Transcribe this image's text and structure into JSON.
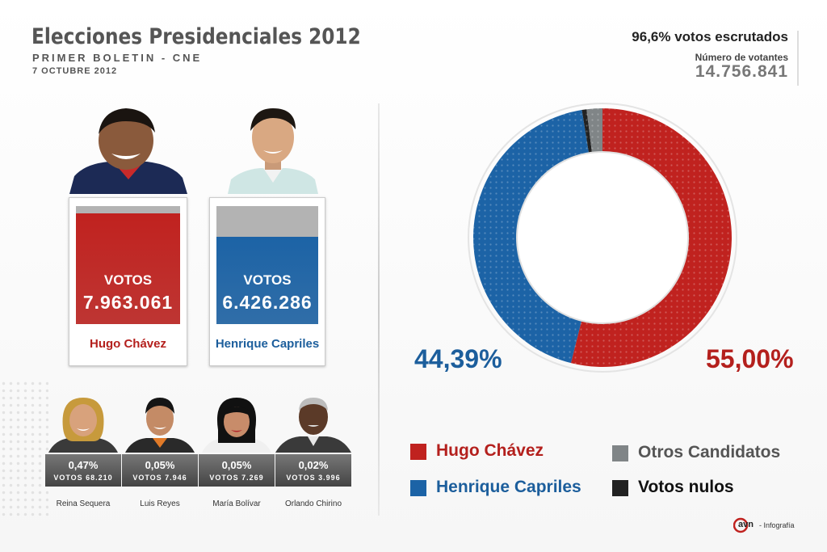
{
  "header": {
    "title": "Elecciones Presidenciales 2012",
    "subtitle": "PRIMER BOLETIN - CNE",
    "date": "7 OCTUBRE 2012",
    "votes_counted": "96,6% votos escrutados",
    "voters_label": "Número de votantes",
    "voters_number": "14.756.841"
  },
  "main_candidates": [
    {
      "name": "Hugo Chávez",
      "votes_label": "VOTOS",
      "votes": "7.963.061",
      "color": "#c0221f",
      "fill": 0.94
    },
    {
      "name": "Henrique Capriles",
      "votes_label": "VOTOS",
      "votes": "6.426.286",
      "color": "#1c63a6",
      "fill": 0.74
    }
  ],
  "minor_candidates": [
    {
      "name": "Reina Sequera",
      "pct": "0,47%",
      "votes": "VOTOS 68.210"
    },
    {
      "name": "Luis Reyes",
      "pct": "0,05%",
      "votes": "VOTOS 7.946"
    },
    {
      "name": "María Bolívar",
      "pct": "0,05%",
      "votes": "VOTOS 7.269"
    },
    {
      "name": "Orlando Chirino",
      "pct": "0,02%",
      "votes": "VOTOS 3.996"
    }
  ],
  "chart_data": {
    "type": "pie",
    "categories": [
      "Hugo Chávez",
      "Henrique Capriles",
      "Votos nulos",
      "Otros Candidatos"
    ],
    "values": [
      55.0,
      44.39,
      0.6,
      2.0
    ],
    "labels": [
      "55,00%",
      "44,39%"
    ],
    "colors": [
      "#c0221f",
      "#1c63a6",
      "#222222",
      "#808587"
    ]
  },
  "legend": [
    {
      "label": "Hugo Chávez",
      "color": "#c0221f",
      "text_color": "#b4201d"
    },
    {
      "label": "Otros Candidatos",
      "color": "#808587",
      "text_color": "#555555"
    },
    {
      "label": "Henrique Capriles",
      "color": "#1c63a6",
      "text_color": "#1c5e9c"
    },
    {
      "label": "Votos nulos",
      "color": "#222222",
      "text_color": "#111111"
    }
  ],
  "footer": {
    "logo_text": "avn",
    "credit": "- Infografía"
  }
}
